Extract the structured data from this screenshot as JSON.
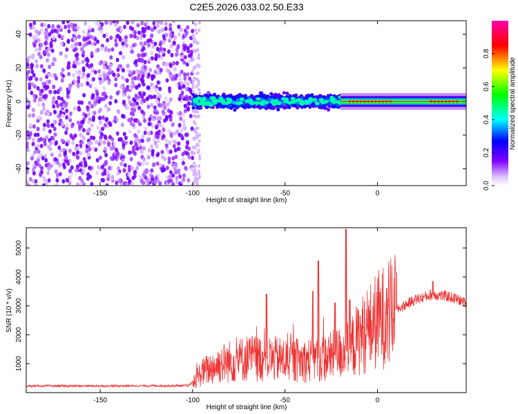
{
  "title": "C2E5.2026.033.02.50.E33",
  "chart_data": [
    {
      "type": "heatmap",
      "xlabel": "Height of straight line (km)",
      "ylabel": "Frequency (Hz)",
      "xlim": [
        -190,
        48
      ],
      "ylim": [
        -50,
        48
      ],
      "xticks": [
        -150,
        -100,
        -50,
        0
      ],
      "yticks": [
        -40,
        -20,
        0,
        20,
        40
      ],
      "colorbar": {
        "label": "Normalized spectral amplitude",
        "range": [
          0.0,
          1.0
        ],
        "ticks": [
          "0.0",
          "0.2",
          "0.4",
          "0.6",
          "0.8"
        ],
        "colors": [
          "#ffffff",
          "#8000ff",
          "#0000ff",
          "#00ffff",
          "#00ff00",
          "#ffff00",
          "#ff0000",
          "#ff00ff"
        ]
      },
      "regions": [
        {
          "x": [
            -190,
            -100
          ],
          "freq_spread": 48,
          "amplitude": 0.1,
          "description_level": "noise"
        },
        {
          "x": [
            -100,
            -20
          ],
          "freq_spread": 8,
          "amplitude": 0.35
        },
        {
          "x": [
            -20,
            48
          ],
          "freq_spread": 1.5,
          "amplitude": 0.85
        }
      ]
    },
    {
      "type": "line",
      "xlabel": "Height of straight line (km)",
      "ylabel": "SNR (10 * v/v)",
      "xlim": [
        -190,
        48
      ],
      "ylim": [
        0,
        5700
      ],
      "xticks": [
        -150,
        -100,
        -50,
        0
      ],
      "yticks": [
        1000,
        2000,
        3000,
        4000,
        5000
      ],
      "line_color": "#ee3333",
      "envelope": [
        {
          "x": -190,
          "y": 230
        },
        {
          "x": -150,
          "y": 230
        },
        {
          "x": -102,
          "y": 240
        },
        {
          "x": -95,
          "y": 700
        },
        {
          "x": -85,
          "y": 1000
        },
        {
          "x": -70,
          "y": 1200
        },
        {
          "x": -55,
          "y": 1150
        },
        {
          "x": -40,
          "y": 1100
        },
        {
          "x": -25,
          "y": 1250
        },
        {
          "x": -15,
          "y": 1500
        },
        {
          "x": -10,
          "y": 1900
        },
        {
          "x": 0,
          "y": 2500
        },
        {
          "x": 10,
          "y": 2850
        },
        {
          "x": 20,
          "y": 3200
        },
        {
          "x": 30,
          "y": 3400
        },
        {
          "x": 40,
          "y": 3300
        },
        {
          "x": 48,
          "y": 3100
        }
      ],
      "peaks": [
        {
          "x": -60,
          "y": 3400
        },
        {
          "x": -35,
          "y": 3500
        },
        {
          "x": -32,
          "y": 4550
        },
        {
          "x": -23,
          "y": 3100
        },
        {
          "x": -17,
          "y": 5650
        },
        {
          "x": -15,
          "y": 3200
        },
        {
          "x": 5,
          "y": 3600
        },
        {
          "x": 10,
          "y": 4150
        },
        {
          "x": 30,
          "y": 3850
        }
      ]
    }
  ]
}
